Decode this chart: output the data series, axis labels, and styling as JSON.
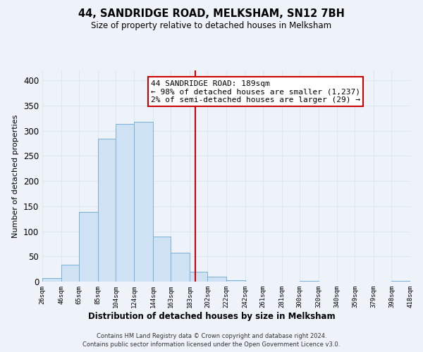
{
  "title": "44, SANDRIDGE ROAD, MELKSHAM, SN12 7BH",
  "subtitle": "Size of property relative to detached houses in Melksham",
  "xlabel": "Distribution of detached houses by size in Melksham",
  "ylabel": "Number of detached properties",
  "bar_edges": [
    26,
    46,
    65,
    85,
    104,
    124,
    144,
    163,
    183,
    202,
    222,
    242,
    261,
    281,
    300,
    320,
    340,
    359,
    379,
    398,
    418
  ],
  "bar_heights": [
    7,
    34,
    139,
    284,
    314,
    318,
    90,
    57,
    20,
    10,
    3,
    0,
    0,
    0,
    1,
    0,
    0,
    0,
    0,
    1
  ],
  "bar_color": "#cfe2f3",
  "bar_edge_color": "#7ab0d4",
  "property_line_x": 189,
  "property_line_color": "#cc0000",
  "ann_line1": "44 SANDRIDGE ROAD: 189sqm",
  "ann_line2": "← 98% of detached houses are smaller (1,237)",
  "ann_line3": "2% of semi-detached houses are larger (29) →",
  "annotation_box_edge_color": "#cc0000",
  "annotation_box_bg": "#ffffff",
  "ylim": [
    0,
    420
  ],
  "yticks": [
    0,
    50,
    100,
    150,
    200,
    250,
    300,
    350,
    400
  ],
  "tick_labels": [
    "26sqm",
    "46sqm",
    "65sqm",
    "85sqm",
    "104sqm",
    "124sqm",
    "144sqm",
    "163sqm",
    "183sqm",
    "202sqm",
    "222sqm",
    "242sqm",
    "261sqm",
    "281sqm",
    "300sqm",
    "320sqm",
    "340sqm",
    "359sqm",
    "379sqm",
    "398sqm",
    "418sqm"
  ],
  "footnote1": "Contains HM Land Registry data © Crown copyright and database right 2024.",
  "footnote2": "Contains public sector information licensed under the Open Government Licence v3.0.",
  "grid_color": "#dce8f0",
  "bg_color": "#eef3fa",
  "title_fontsize": 10.5,
  "subtitle_fontsize": 8.5,
  "ann_fontsize": 8.0,
  "ylabel_fontsize": 8.0,
  "xlabel_fontsize": 8.5,
  "xtick_fontsize": 6.5,
  "ytick_fontsize": 8.5,
  "footnote_fontsize": 6.0
}
